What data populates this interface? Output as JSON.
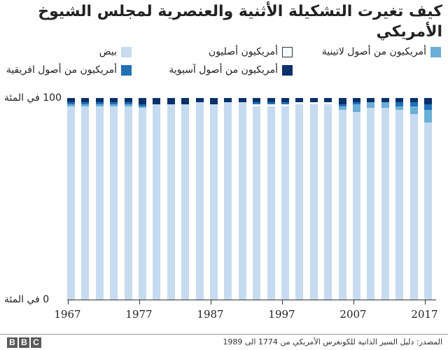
{
  "title": "كيف تغيرت التشكيلة الأثنية والعنصرية لمجلس الشيوخ الأمريكي",
  "legend": [
    {
      "key": "hispanic",
      "label": "أمريكيون من أصول لاتينية",
      "color": "#6baed6"
    },
    {
      "key": "native",
      "label": "أمريكيون أصليون",
      "color": "#f7fbff"
    },
    {
      "key": "white",
      "label": "بيض",
      "color": "#c6dbef"
    },
    {
      "key": "asian",
      "label": "أمريكيون من أصول آسيوية",
      "color": "#08306b"
    },
    {
      "key": "african",
      "label": "أمريكيون من أصول افريقية",
      "color": "#2171b5"
    }
  ],
  "axis": {
    "y_top_label": "100 في المئة",
    "y_bottom_label": "0 في المئة",
    "x_ticks": [
      "1967",
      "1977",
      "1987",
      "1997",
      "2007",
      "2017"
    ]
  },
  "chart_data": {
    "type": "bar",
    "stacked": true,
    "title": "كيف تغيرت التشكيلة الأثنية والعنصرية لمجلس الشيوخ الأمريكي",
    "xlabel": "",
    "ylabel": "",
    "ylim": [
      0,
      100
    ],
    "y_tick_labels": [
      "0 في المئة",
      "100 في المئة"
    ],
    "x_tick_labels": [
      "1967",
      "1977",
      "1987",
      "1997",
      "2007",
      "2017"
    ],
    "legend_position": "top",
    "categories": [
      "1967",
      "1969",
      "1971",
      "1973",
      "1975",
      "1977",
      "1979",
      "1981",
      "1983",
      "1985",
      "1987",
      "1989",
      "1991",
      "1993",
      "1995",
      "1997",
      "1999",
      "2001",
      "2003",
      "2005",
      "2007",
      "2009",
      "2011",
      "2013",
      "2015",
      "2017"
    ],
    "series": [
      {
        "name": "بيض",
        "key": "white",
        "color": "#c6dbef",
        "values": [
          96,
          96,
          96,
          96,
          96,
          95,
          97,
          97,
          97,
          98,
          97,
          98,
          98,
          96,
          96,
          96,
          97,
          97,
          97,
          94,
          93,
          95,
          95,
          94,
          92,
          88
        ]
      },
      {
        "name": "أمريكيون من أصول لاتينية",
        "key": "hispanic",
        "color": "#6baed6",
        "values": [
          1,
          1,
          1,
          1,
          1,
          1,
          0,
          0,
          0,
          0,
          0,
          0,
          0,
          0,
          0,
          0,
          0,
          0,
          0,
          2,
          4,
          3,
          3,
          2,
          4,
          6
        ]
      },
      {
        "name": "أمريكيون أصليون",
        "key": "native",
        "color": "#f7fbff",
        "values": [
          0,
          0,
          0,
          0,
          0,
          0,
          0,
          0,
          0,
          0,
          0,
          0,
          0,
          1,
          1,
          1,
          1,
          1,
          1,
          0,
          0,
          0,
          0,
          0,
          0,
          0
        ]
      },
      {
        "name": "أمريكيون من أصول افريقية",
        "key": "african",
        "color": "#2171b5",
        "values": [
          1,
          1,
          1,
          1,
          1,
          1,
          0,
          0,
          0,
          0,
          0,
          0,
          0,
          1,
          1,
          1,
          0,
          0,
          0,
          1,
          1,
          0,
          0,
          2,
          2,
          3
        ]
      },
      {
        "name": "أمريكيون من أصول آسيوية",
        "key": "asian",
        "color": "#08306b",
        "values": [
          2,
          2,
          2,
          2,
          2,
          3,
          3,
          3,
          3,
          2,
          3,
          2,
          2,
          2,
          2,
          2,
          2,
          2,
          2,
          3,
          2,
          2,
          2,
          2,
          2,
          3
        ]
      }
    ]
  },
  "footer": {
    "logo_letters": [
      "B",
      "B",
      "C"
    ],
    "source": "المصدر: دليل السير الذاتية للكونغرس الأمريكي من 1774 الى 1989"
  }
}
